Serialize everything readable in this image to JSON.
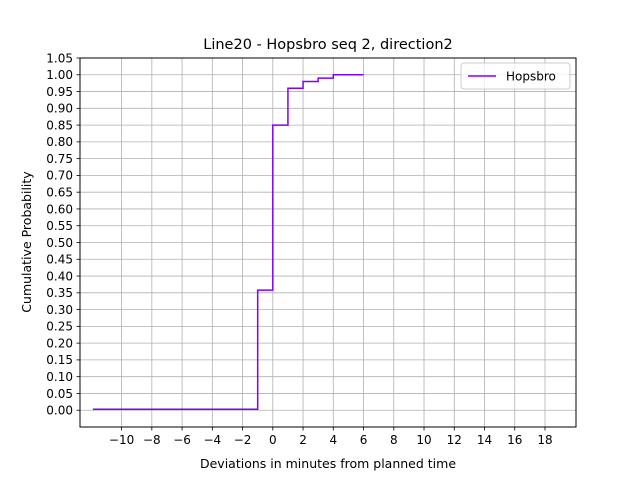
{
  "chart_data": {
    "type": "line",
    "drawstyle": "steps-post",
    "title": "Line20 - Hopsbro seq 2, direction2",
    "xlabel": "Deviations in minutes from planned time",
    "ylabel": "Cumulative Probability",
    "xlim": [
      -12.75,
      20.05
    ],
    "ylim": [
      -0.05,
      1.05
    ],
    "xticks": [
      -10,
      -8,
      -6,
      -4,
      -2,
      0,
      2,
      4,
      6,
      8,
      10,
      12,
      14,
      16,
      18
    ],
    "yticks": [
      0.0,
      0.05,
      0.1,
      0.15,
      0.2,
      0.25,
      0.3,
      0.35,
      0.4,
      0.45,
      0.5,
      0.55,
      0.6,
      0.65,
      0.7,
      0.75,
      0.8,
      0.85,
      0.9,
      0.95,
      1.0,
      1.05
    ],
    "grid": true,
    "legend_position": "upper right",
    "series": [
      {
        "name": "Hopsbro",
        "color": "#7f00ff",
        "x": [
          -11.9,
          -1,
          0,
          1,
          2,
          3,
          4,
          6
        ],
        "y": [
          0.003,
          0.358,
          0.85,
          0.96,
          0.98,
          0.99,
          1.0,
          1.0
        ]
      }
    ]
  }
}
